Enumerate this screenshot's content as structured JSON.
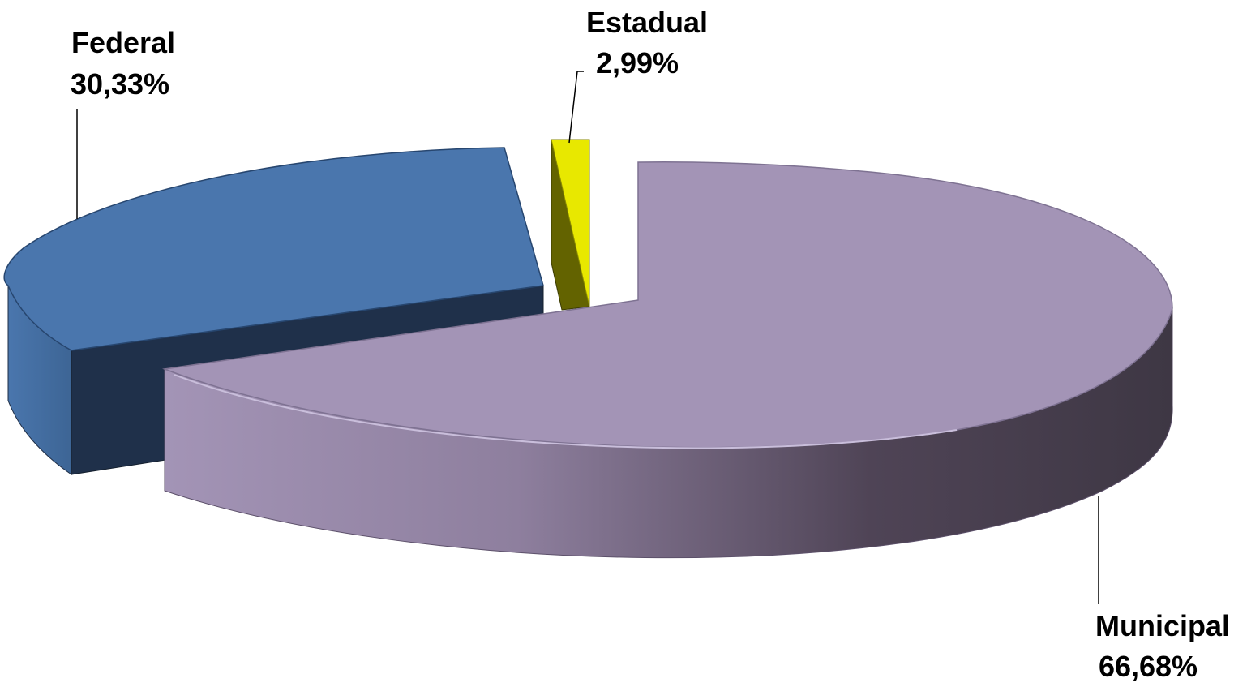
{
  "chart_data": {
    "type": "pie",
    "style": "3d-exploded",
    "title": "",
    "slices": [
      {
        "label": "Federal",
        "value": 30.33,
        "value_text": "30,33%",
        "color": "#4a76ad"
      },
      {
        "label": "Estadual",
        "value": 2.99,
        "value_text": "2,99%",
        "color": "#e8e800"
      },
      {
        "label": "Municipal",
        "value": 66.68,
        "value_text": "66,68%",
        "color": "#a394b6"
      }
    ]
  }
}
